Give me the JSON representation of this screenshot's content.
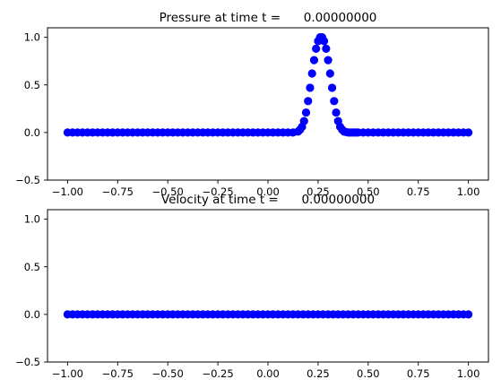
{
  "colors": {
    "marker": "#0000ff",
    "axes": "#000000",
    "background": "#ffffff"
  },
  "chart_data": [
    {
      "type": "scatter",
      "title": "Pressure at time t =      0.00000000",
      "xlabel": "",
      "ylabel": "",
      "xlim": [
        -1.1,
        1.1
      ],
      "ylim": [
        -0.5,
        1.1
      ],
      "xticks": [
        -1.0,
        -0.75,
        -0.5,
        -0.25,
        0.0,
        0.25,
        0.5,
        0.75,
        1.0
      ],
      "xtick_labels": [
        "−1.00",
        "−0.75",
        "−0.50",
        "−0.25",
        "0.00",
        "0.25",
        "0.50",
        "0.75",
        "1.00"
      ],
      "yticks": [
        -0.5,
        0.0,
        0.5,
        1.0
      ],
      "ytick_labels": [
        "−0.5",
        "0.0",
        "0.5",
        "1.0"
      ],
      "grid": false,
      "series": [
        {
          "marker": "circle",
          "color": "#0000ff",
          "x": [
            -1.0,
            -0.975,
            -0.95,
            -0.925,
            -0.9,
            -0.875,
            -0.85,
            -0.825,
            -0.8,
            -0.775,
            -0.75,
            -0.725,
            -0.7,
            -0.675,
            -0.65,
            -0.625,
            -0.6,
            -0.575,
            -0.55,
            -0.525,
            -0.5,
            -0.475,
            -0.45,
            -0.425,
            -0.4,
            -0.375,
            -0.35,
            -0.325,
            -0.3,
            -0.275,
            -0.25,
            -0.225,
            -0.2,
            -0.175,
            -0.15,
            -0.125,
            -0.1,
            -0.075,
            -0.05,
            -0.025,
            0.0,
            0.025,
            0.05,
            0.075,
            0.1,
            0.125,
            0.15,
            0.16,
            0.17,
            0.18,
            0.19,
            0.2,
            0.21,
            0.22,
            0.23,
            0.24,
            0.25,
            0.26,
            0.27,
            0.28,
            0.29,
            0.3,
            0.31,
            0.32,
            0.33,
            0.34,
            0.35,
            0.36,
            0.37,
            0.38,
            0.39,
            0.4,
            0.41,
            0.42,
            0.43,
            0.44,
            0.45,
            0.475,
            0.5,
            0.525,
            0.55,
            0.575,
            0.6,
            0.625,
            0.65,
            0.675,
            0.7,
            0.725,
            0.75,
            0.775,
            0.8,
            0.825,
            0.85,
            0.875,
            0.9,
            0.925,
            0.95,
            0.975,
            1.0
          ],
          "y": [
            0,
            0,
            0,
            0,
            0,
            0,
            0,
            0,
            0,
            0,
            0,
            0,
            0,
            0,
            0,
            0,
            0,
            0,
            0,
            0,
            0,
            0,
            0,
            0,
            0,
            0,
            0,
            0,
            0,
            0,
            0,
            0,
            0,
            0,
            0,
            0,
            0,
            0,
            0,
            0,
            0,
            0,
            0,
            0,
            0,
            0,
            0.01,
            0.03,
            0.06,
            0.12,
            0.21,
            0.33,
            0.47,
            0.62,
            0.76,
            0.88,
            0.96,
            1.0,
            1.0,
            0.96,
            0.88,
            0.76,
            0.62,
            0.47,
            0.33,
            0.21,
            0.12,
            0.06,
            0.03,
            0.01,
            0.005,
            0,
            0,
            0,
            0,
            0,
            0,
            0,
            0,
            0,
            0,
            0,
            0,
            0,
            0,
            0,
            0,
            0,
            0,
            0,
            0,
            0,
            0,
            0,
            0,
            0,
            0,
            0,
            0
          ]
        }
      ]
    },
    {
      "type": "scatter",
      "title": "Velocity at time t =      0.00000000",
      "xlabel": "",
      "ylabel": "",
      "xlim": [
        -1.1,
        1.1
      ],
      "ylim": [
        -0.5,
        1.1
      ],
      "xticks": [
        -1.0,
        -0.75,
        -0.5,
        -0.25,
        0.0,
        0.25,
        0.5,
        0.75,
        1.0
      ],
      "xtick_labels": [
        "−1.00",
        "−0.75",
        "−0.50",
        "−0.25",
        "0.00",
        "0.25",
        "0.50",
        "0.75",
        "1.00"
      ],
      "yticks": [
        -0.5,
        0.0,
        0.5,
        1.0
      ],
      "ytick_labels": [
        "−0.5",
        "0.0",
        "0.5",
        "1.0"
      ],
      "grid": false,
      "series": [
        {
          "marker": "circle",
          "color": "#0000ff",
          "x": [
            -1.0,
            -0.975,
            -0.95,
            -0.925,
            -0.9,
            -0.875,
            -0.85,
            -0.825,
            -0.8,
            -0.775,
            -0.75,
            -0.725,
            -0.7,
            -0.675,
            -0.65,
            -0.625,
            -0.6,
            -0.575,
            -0.55,
            -0.525,
            -0.5,
            -0.475,
            -0.45,
            -0.425,
            -0.4,
            -0.375,
            -0.35,
            -0.325,
            -0.3,
            -0.275,
            -0.25,
            -0.225,
            -0.2,
            -0.175,
            -0.15,
            -0.125,
            -0.1,
            -0.075,
            -0.05,
            -0.025,
            0.0,
            0.025,
            0.05,
            0.075,
            0.1,
            0.125,
            0.15,
            0.175,
            0.2,
            0.225,
            0.25,
            0.275,
            0.3,
            0.325,
            0.35,
            0.375,
            0.4,
            0.425,
            0.45,
            0.475,
            0.5,
            0.525,
            0.55,
            0.575,
            0.6,
            0.625,
            0.65,
            0.675,
            0.7,
            0.725,
            0.75,
            0.775,
            0.8,
            0.825,
            0.85,
            0.875,
            0.9,
            0.925,
            0.95,
            0.975,
            1.0
          ],
          "y": [
            0,
            0,
            0,
            0,
            0,
            0,
            0,
            0,
            0,
            0,
            0,
            0,
            0,
            0,
            0,
            0,
            0,
            0,
            0,
            0,
            0,
            0,
            0,
            0,
            0,
            0,
            0,
            0,
            0,
            0,
            0,
            0,
            0,
            0,
            0,
            0,
            0,
            0,
            0,
            0,
            0,
            0,
            0,
            0,
            0,
            0,
            0,
            0,
            0,
            0,
            0,
            0,
            0,
            0,
            0,
            0,
            0,
            0,
            0,
            0,
            0,
            0,
            0,
            0,
            0,
            0,
            0,
            0,
            0,
            0,
            0,
            0,
            0,
            0,
            0,
            0,
            0,
            0,
            0,
            0,
            0
          ]
        }
      ]
    }
  ]
}
